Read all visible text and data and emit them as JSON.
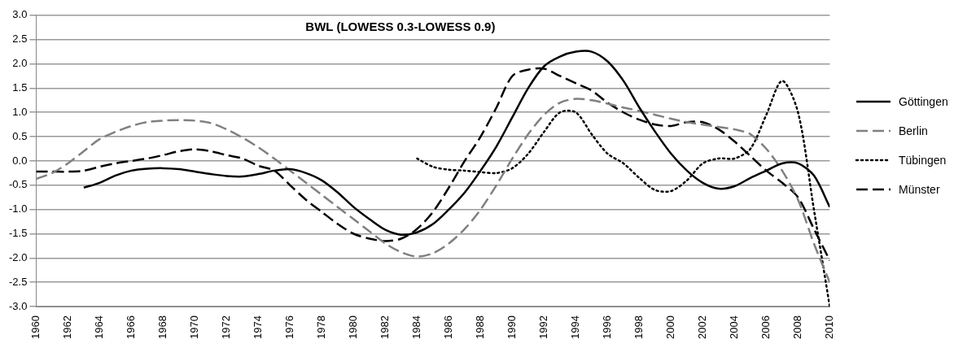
{
  "chart_data": {
    "type": "line",
    "title": "BWL (LOWESS 0.3-LOWESS 0.9)",
    "x": [
      1960,
      1961,
      1962,
      1963,
      1964,
      1965,
      1966,
      1967,
      1968,
      1969,
      1970,
      1971,
      1972,
      1973,
      1974,
      1975,
      1976,
      1977,
      1978,
      1979,
      1980,
      1981,
      1982,
      1983,
      1984,
      1985,
      1986,
      1987,
      1988,
      1989,
      1990,
      1991,
      1992,
      1993,
      1994,
      1995,
      1996,
      1997,
      1998,
      1999,
      2000,
      2001,
      2002,
      2003,
      2004,
      2005,
      2006,
      2007,
      2008,
      2009,
      2010
    ],
    "series": [
      {
        "name": "Göttingen",
        "color": "#000000",
        "line_style": "solid",
        "values": [
          null,
          null,
          null,
          -0.55,
          -0.45,
          -0.3,
          -0.2,
          -0.16,
          -0.15,
          -0.17,
          -0.22,
          -0.27,
          -0.31,
          -0.32,
          -0.27,
          -0.2,
          -0.17,
          -0.25,
          -0.4,
          -0.65,
          -0.95,
          -1.2,
          -1.42,
          -1.52,
          -1.47,
          -1.3,
          -1.0,
          -0.65,
          -0.2,
          0.3,
          0.9,
          1.5,
          1.95,
          2.15,
          2.25,
          2.25,
          2.05,
          1.65,
          1.1,
          0.6,
          0.15,
          -0.2,
          -0.45,
          -0.57,
          -0.52,
          -0.35,
          -0.2,
          -0.05,
          -0.05,
          -0.3,
          -0.95
        ]
      },
      {
        "name": "Berlin",
        "color": "#808080",
        "line_style": "dashed",
        "values": [
          -0.37,
          -0.25,
          -0.05,
          0.2,
          0.45,
          0.6,
          0.72,
          0.8,
          0.83,
          0.84,
          0.83,
          0.78,
          0.65,
          0.48,
          0.28,
          0.05,
          -0.2,
          -0.45,
          -0.7,
          -0.95,
          -1.2,
          -1.45,
          -1.7,
          -1.88,
          -1.97,
          -1.9,
          -1.7,
          -1.4,
          -1.0,
          -0.5,
          0.05,
          0.55,
          0.95,
          1.2,
          1.28,
          1.25,
          1.18,
          1.1,
          1.03,
          0.95,
          0.87,
          0.8,
          0.75,
          0.7,
          0.65,
          0.55,
          0.25,
          -0.2,
          -0.8,
          -1.7,
          -2.5
        ]
      },
      {
        "name": "Tübingen",
        "color": "#000000",
        "line_style": "dotted",
        "values": [
          null,
          null,
          null,
          null,
          null,
          null,
          null,
          null,
          null,
          null,
          null,
          null,
          null,
          null,
          null,
          null,
          null,
          null,
          null,
          null,
          null,
          null,
          null,
          null,
          0.05,
          -0.12,
          -0.18,
          -0.2,
          -0.23,
          -0.25,
          -0.15,
          0.15,
          0.6,
          1.0,
          1.0,
          0.55,
          0.15,
          -0.05,
          -0.35,
          -0.6,
          -0.62,
          -0.4,
          -0.05,
          0.05,
          0.05,
          0.25,
          0.95,
          1.65,
          1.0,
          -1.0,
          -3.0
        ]
      },
      {
        "name": "Münster",
        "color": "#000000",
        "line_style": "dashed",
        "values": [
          -0.22,
          -0.22,
          -0.22,
          -0.2,
          -0.12,
          -0.05,
          0.0,
          0.05,
          0.12,
          0.2,
          0.24,
          0.2,
          0.12,
          0.05,
          -0.1,
          -0.2,
          -0.5,
          -0.8,
          -1.05,
          -1.3,
          -1.5,
          -1.6,
          -1.65,
          -1.6,
          -1.4,
          -1.05,
          -0.55,
          0.0,
          0.5,
          1.1,
          1.75,
          1.88,
          1.9,
          1.75,
          1.6,
          1.45,
          1.2,
          1.0,
          0.85,
          0.75,
          0.72,
          0.8,
          0.8,
          0.65,
          0.4,
          0.1,
          -0.2,
          -0.45,
          -0.75,
          -1.4,
          -2.05
        ]
      }
    ],
    "xlim": [
      1960,
      2010
    ],
    "xticks": [
      1960,
      1962,
      1964,
      1966,
      1968,
      1970,
      1972,
      1974,
      1976,
      1978,
      1980,
      1982,
      1984,
      1986,
      1988,
      1990,
      1992,
      1994,
      1996,
      1998,
      2000,
      2002,
      2004,
      2006,
      2008,
      2010
    ],
    "ylim": [
      -3,
      3
    ],
    "yticks": [
      {
        "value": -3,
        "label": "-3.0"
      },
      {
        "value": -2.5,
        "label": "-2.5"
      },
      {
        "value": -2,
        "label": "-2.0"
      },
      {
        "value": -1.5,
        "label": "-1.5"
      },
      {
        "value": -1,
        "label": "-1.0"
      },
      {
        "value": -0.5,
        "label": "-0.5"
      },
      {
        "value": 0,
        "label": "0.0"
      },
      {
        "value": 0.5,
        "label": "0.5"
      },
      {
        "value": 1,
        "label": "1.0"
      },
      {
        "value": 1.5,
        "label": "1.5"
      },
      {
        "value": 2,
        "label": "2.0"
      },
      {
        "value": 2.5,
        "label": "2.5"
      },
      {
        "value": 3,
        "label": "3.0"
      }
    ],
    "grid": "y",
    "legend": "right",
    "marker": "none"
  }
}
